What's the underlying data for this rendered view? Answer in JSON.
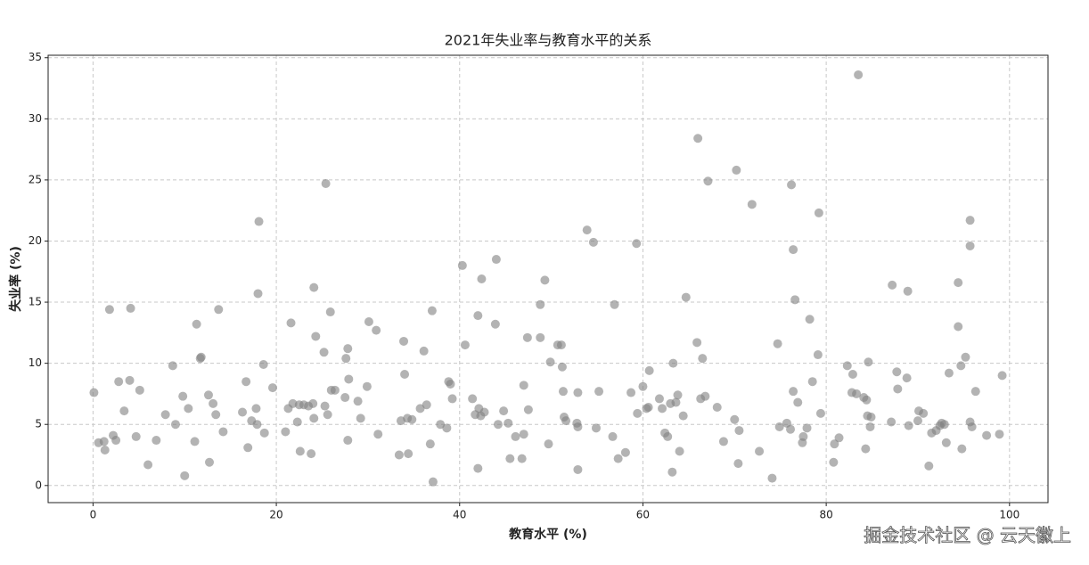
{
  "chart_data": {
    "type": "scatter",
    "title": "2021年失业率与教育水平的关系",
    "x_label": "教育水平 (%)",
    "y_label": "失业率 (%)",
    "watermark": "掘金技术社区 @ 云天徽上",
    "color": "#808080",
    "alpha": 0.6,
    "grid": true,
    "xlim": [
      -4.9,
      104.2
    ],
    "ylim": [
      -1.4,
      35.2
    ],
    "xticks": [
      0,
      20,
      40,
      60,
      80,
      100
    ],
    "yticks": [
      0,
      5,
      10,
      15,
      20,
      25,
      30,
      35
    ],
    "x": [
      0.1,
      0.6,
      1.2,
      1.3,
      1.8,
      2.2,
      2.5,
      2.8,
      3.4,
      4.0,
      4.1,
      4.7,
      5.1,
      6.0,
      6.9,
      7.9,
      8.7,
      9.0,
      9.8,
      10.0,
      10.4,
      11.1,
      11.3,
      11.8,
      11.7,
      12.6,
      12.7,
      13.1,
      13.4,
      13.7,
      14.2,
      16.3,
      16.7,
      16.9,
      17.3,
      17.8,
      17.9,
      18.0,
      18.1,
      18.6,
      18.7,
      19.6,
      21.0,
      21.3,
      21.6,
      21.8,
      22.3,
      22.5,
      22.6,
      23.0,
      23.5,
      23.8,
      24.0,
      24.1,
      24.1,
      24.3,
      25.2,
      25.3,
      25.4,
      25.6,
      25.9,
      26.0,
      26.4,
      27.5,
      27.6,
      27.8,
      27.9,
      27.8,
      28.9,
      29.2,
      29.9,
      30.1,
      30.9,
      31.1,
      33.4,
      33.6,
      33.9,
      34.0,
      34.3,
      34.4,
      34.8,
      35.7,
      36.1,
      36.4,
      36.8,
      37.0,
      37.1,
      37.9,
      38.6,
      38.8,
      39.0,
      39.2,
      40.3,
      40.6,
      41.4,
      41.7,
      42.0,
      42.0,
      42.1,
      42.3,
      42.4,
      42.7,
      43.9,
      44.0,
      44.2,
      44.8,
      45.3,
      45.5,
      46.1,
      46.8,
      47.0,
      47.0,
      47.4,
      47.5,
      48.8,
      48.8,
      49.3,
      49.7,
      49.9,
      50.7,
      51.1,
      51.2,
      51.3,
      51.4,
      51.6,
      52.8,
      52.9,
      52.9,
      52.9,
      53.9,
      54.6,
      54.9,
      55.2,
      56.7,
      56.9,
      57.3,
      58.1,
      58.7,
      59.3,
      59.4,
      60.0,
      60.4,
      60.6,
      60.7,
      61.8,
      62.1,
      62.4,
      62.7,
      63.0,
      63.2,
      63.3,
      63.6,
      63.8,
      64.0,
      64.4,
      64.7,
      65.9,
      66.0,
      66.3,
      66.5,
      66.8,
      67.1,
      68.1,
      68.8,
      70.0,
      70.2,
      70.4,
      70.5,
      71.9,
      72.7,
      74.1,
      74.7,
      74.9,
      75.7,
      76.1,
      76.2,
      76.4,
      76.4,
      76.6,
      76.9,
      77.4,
      77.5,
      77.9,
      78.2,
      78.5,
      79.1,
      79.2,
      79.4,
      80.8,
      80.9,
      81.4,
      82.3,
      82.9,
      82.8,
      83.3,
      83.5,
      84.1,
      84.3,
      84.4,
      84.5,
      84.6,
      84.8,
      84.9,
      87.1,
      87.2,
      87.7,
      87.8,
      88.8,
      88.9,
      89.0,
      90.0,
      90.1,
      90.6,
      91.2,
      91.5,
      92.0,
      92.4,
      92.6,
      92.9,
      93.1,
      93.4,
      94.4,
      94.4,
      94.7,
      94.8,
      95.2,
      95.7,
      95.7,
      95.7,
      95.9,
      96.3,
      97.5,
      98.9,
      99.2
    ],
    "values": [
      7.6,
      3.5,
      3.6,
      2.9,
      14.4,
      4.1,
      3.7,
      8.5,
      6.1,
      8.6,
      14.5,
      4.0,
      7.8,
      1.7,
      3.7,
      5.8,
      9.8,
      5.0,
      7.3,
      0.8,
      6.3,
      3.6,
      13.2,
      10.5,
      10.4,
      7.4,
      1.9,
      6.7,
      5.8,
      14.4,
      4.4,
      6.0,
      8.5,
      3.1,
      5.3,
      6.3,
      5.0,
      15.7,
      21.6,
      9.9,
      4.3,
      8.0,
      4.4,
      6.3,
      13.3,
      6.7,
      5.2,
      6.6,
      2.8,
      6.6,
      6.5,
      2.6,
      6.7,
      16.2,
      5.5,
      12.2,
      10.9,
      6.5,
      24.7,
      5.8,
      14.2,
      7.8,
      7.8,
      7.2,
      10.4,
      11.2,
      8.7,
      3.7,
      6.9,
      5.5,
      8.1,
      13.4,
      12.7,
      4.2,
      2.5,
      5.3,
      11.8,
      9.1,
      5.5,
      2.6,
      5.4,
      6.3,
      11.0,
      6.6,
      3.4,
      14.3,
      0.3,
      5.0,
      4.7,
      8.5,
      8.3,
      7.1,
      18.0,
      11.5,
      7.1,
      5.8,
      13.9,
      1.4,
      6.3,
      5.7,
      16.9,
      6.0,
      13.2,
      18.5,
      5.0,
      6.1,
      5.1,
      2.2,
      4.0,
      2.2,
      4.2,
      8.2,
      12.1,
      6.2,
      12.1,
      14.8,
      16.8,
      3.4,
      10.1,
      11.5,
      11.5,
      9.7,
      7.7,
      5.6,
      5.3,
      5.1,
      7.6,
      4.8,
      1.3,
      20.9,
      19.9,
      4.7,
      7.7,
      4.0,
      14.8,
      2.2,
      2.7,
      7.6,
      19.8,
      5.9,
      8.1,
      6.3,
      6.4,
      9.4,
      7.1,
      6.3,
      4.3,
      4.0,
      6.7,
      1.1,
      10.0,
      6.8,
      7.4,
      2.8,
      5.7,
      15.4,
      11.7,
      28.4,
      7.1,
      10.4,
      7.3,
      24.9,
      6.4,
      3.6,
      5.4,
      25.8,
      1.8,
      4.5,
      23.0,
      2.8,
      0.6,
      11.6,
      4.8,
      5.1,
      4.6,
      24.6,
      19.3,
      7.7,
      15.2,
      6.8,
      3.5,
      4.0,
      4.7,
      13.6,
      8.5,
      10.7,
      22.3,
      5.9,
      1.9,
      3.4,
      3.9,
      9.8,
      9.1,
      7.6,
      7.5,
      33.6,
      7.2,
      3.0,
      7.0,
      5.7,
      10.1,
      4.8,
      5.6,
      5.2,
      16.4,
      9.3,
      7.9,
      8.8,
      15.9,
      4.9,
      5.3,
      6.1,
      5.9,
      1.6,
      4.3,
      4.5,
      4.9,
      5.1,
      5.0,
      3.5,
      9.2,
      16.6,
      13.0,
      9.8,
      3.0,
      10.5,
      21.7,
      19.6,
      5.2,
      4.8,
      7.7,
      4.1,
      4.2,
      9.0
    ]
  }
}
